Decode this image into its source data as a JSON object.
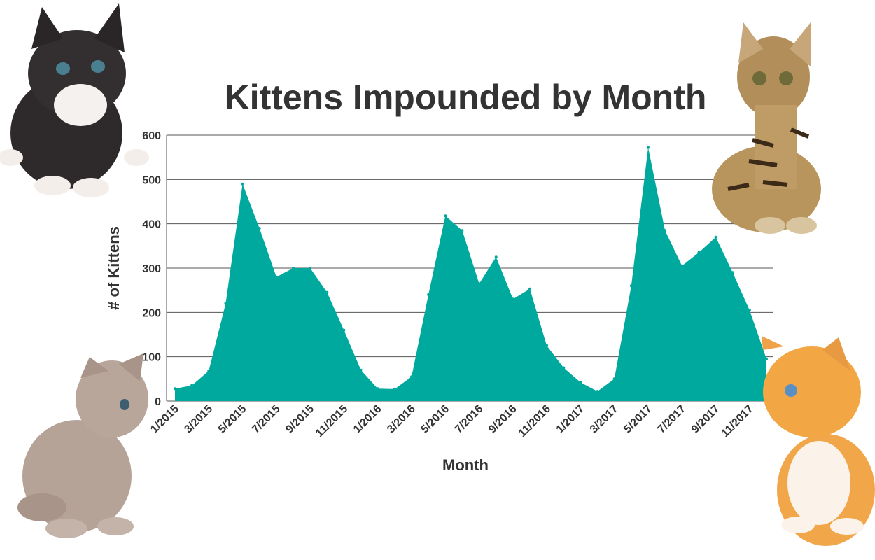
{
  "chart_data": {
    "type": "area",
    "title": "Kittens Impounded by Month",
    "xlabel": "Month",
    "ylabel": "# of Kittens",
    "ylim": [
      0,
      600
    ],
    "yticks": [
      0,
      100,
      200,
      300,
      400,
      500,
      600
    ],
    "grid": true,
    "x_tick_labels": [
      "1/2015",
      "3/2015",
      "5/2015",
      "7/2015",
      "9/2015",
      "11/2015",
      "1/2016",
      "3/2016",
      "5/2016",
      "7/2016",
      "9/2016",
      "11/2016",
      "1/2017",
      "3/2017",
      "5/2017",
      "7/2017",
      "9/2017",
      "11/2017"
    ],
    "categories": [
      "1/2015",
      "2/2015",
      "3/2015",
      "4/2015",
      "5/2015",
      "6/2015",
      "7/2015",
      "8/2015",
      "9/2015",
      "10/2015",
      "11/2015",
      "12/2015",
      "1/2016",
      "2/2016",
      "3/2016",
      "4/2016",
      "5/2016",
      "6/2016",
      "7/2016",
      "8/2016",
      "9/2016",
      "10/2016",
      "11/2016",
      "12/2016",
      "1/2017",
      "2/2017",
      "3/2017",
      "4/2017",
      "5/2017",
      "6/2017",
      "7/2017",
      "8/2017",
      "9/2017",
      "10/2017",
      "11/2017",
      "12/2017"
    ],
    "series": [
      {
        "name": "Kittens",
        "color": "#00a99d",
        "values": [
          28,
          35,
          68,
          220,
          490,
          390,
          280,
          300,
          300,
          245,
          160,
          70,
          28,
          27,
          55,
          240,
          418,
          385,
          265,
          325,
          230,
          253,
          125,
          75,
          42,
          22,
          50,
          260,
          572,
          385,
          305,
          335,
          370,
          290,
          205,
          95
        ]
      }
    ]
  },
  "decor": {
    "kittens": [
      "black-white-kitten",
      "bengal-kitten",
      "gray-kitten",
      "orange-kitten"
    ]
  }
}
